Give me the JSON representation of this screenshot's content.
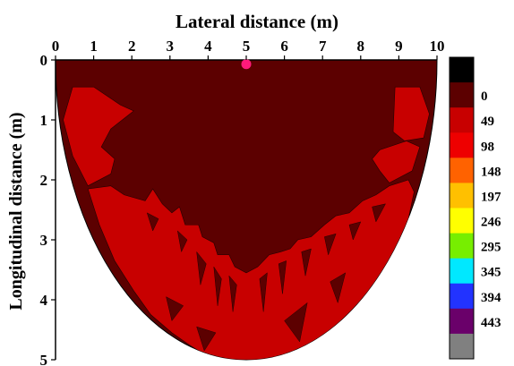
{
  "chart_data": {
    "type": "heatmap",
    "title": "",
    "xlabel": "Lateral distance (m)",
    "ylabel": "Longitudinal distance (m)",
    "xlim": [
      0,
      10
    ],
    "ylim": [
      5,
      0
    ],
    "x_ticks": [
      "0",
      "1",
      "2",
      "3",
      "4",
      "5",
      "6",
      "7",
      "8",
      "9",
      "10"
    ],
    "y_ticks": [
      "0",
      "1",
      "2",
      "3",
      "4",
      "5"
    ],
    "x_axis_position": "top",
    "legend_position": "right",
    "legend": [
      {
        "label": "",
        "color": "#000000"
      },
      {
        "label": "0",
        "color": "#5c0000"
      },
      {
        "label": "49",
        "color": "#c80000"
      },
      {
        "label": "98",
        "color": "#ee0000"
      },
      {
        "label": "148",
        "color": "#ff6200"
      },
      {
        "label": "197",
        "color": "#ffc000"
      },
      {
        "label": "246",
        "color": "#ffff00"
      },
      {
        "label": "295",
        "color": "#77ee00"
      },
      {
        "label": "345",
        "color": "#00e8ff"
      },
      {
        "label": "394",
        "color": "#2233ff"
      },
      {
        "label": "443",
        "color": "#6a006a"
      },
      {
        "label": "",
        "color": "#808080"
      }
    ],
    "marker": {
      "x": 5,
      "y": 0.1,
      "color": "#ff1a7a"
    },
    "region_colors": {
      "background": "#5c0000",
      "high": "#c80000"
    },
    "regions": [
      {
        "name": "left-upper",
        "points": [
          [
            0.45,
            0.45
          ],
          [
            1.0,
            0.45
          ],
          [
            1.7,
            0.75
          ],
          [
            2.05,
            0.85
          ],
          [
            1.45,
            1.15
          ],
          [
            1.2,
            1.45
          ],
          [
            1.55,
            1.65
          ],
          [
            1.45,
            1.9
          ],
          [
            0.85,
            2.1
          ],
          [
            0.45,
            1.6
          ],
          [
            0.2,
            1.0
          ]
        ]
      },
      {
        "name": "right-upper",
        "points": [
          [
            8.9,
            0.45
          ],
          [
            9.55,
            0.45
          ],
          [
            9.8,
            0.9
          ],
          [
            9.65,
            1.3
          ],
          [
            9.15,
            1.35
          ],
          [
            8.85,
            1.2
          ]
        ]
      },
      {
        "name": "right-mid",
        "points": [
          [
            9.2,
            1.35
          ],
          [
            9.55,
            1.45
          ],
          [
            9.35,
            1.85
          ],
          [
            8.75,
            2.05
          ],
          [
            8.5,
            1.85
          ],
          [
            8.3,
            1.65
          ],
          [
            8.5,
            1.5
          ]
        ]
      },
      {
        "name": "lower-band",
        "points": [
          [
            0.85,
            2.15
          ],
          [
            1.45,
            2.1
          ],
          [
            1.8,
            2.25
          ],
          [
            2.35,
            2.35
          ],
          [
            2.55,
            2.15
          ],
          [
            2.8,
            2.4
          ],
          [
            3.05,
            2.55
          ],
          [
            3.25,
            2.45
          ],
          [
            3.4,
            2.75
          ],
          [
            3.75,
            2.75
          ],
          [
            3.85,
            2.95
          ],
          [
            4.15,
            3.05
          ],
          [
            4.25,
            3.25
          ],
          [
            4.55,
            3.25
          ],
          [
            4.7,
            3.45
          ],
          [
            5.0,
            3.55
          ],
          [
            5.3,
            3.45
          ],
          [
            5.6,
            3.25
          ],
          [
            5.9,
            3.2
          ],
          [
            6.15,
            3.15
          ],
          [
            6.35,
            3.0
          ],
          [
            6.7,
            2.95
          ],
          [
            7.05,
            2.75
          ],
          [
            7.35,
            2.6
          ],
          [
            7.7,
            2.55
          ],
          [
            8.05,
            2.35
          ],
          [
            8.4,
            2.25
          ],
          [
            8.75,
            2.1
          ],
          [
            9.25,
            2.0
          ],
          [
            9.4,
            2.2
          ],
          [
            9.2,
            2.8
          ],
          [
            8.9,
            3.3
          ],
          [
            8.5,
            3.75
          ],
          [
            8.05,
            4.05
          ],
          [
            7.7,
            4.35
          ],
          [
            7.3,
            4.45
          ],
          [
            6.9,
            4.65
          ],
          [
            6.5,
            4.85
          ],
          [
            6.0,
            4.95
          ],
          [
            5.5,
            5.0
          ],
          [
            5.0,
            5.0
          ],
          [
            4.5,
            5.0
          ],
          [
            4.0,
            4.95
          ],
          [
            3.5,
            4.75
          ],
          [
            3.05,
            4.55
          ],
          [
            2.5,
            4.25
          ],
          [
            2.05,
            3.85
          ],
          [
            1.55,
            3.35
          ],
          [
            1.15,
            2.75
          ]
        ]
      }
    ],
    "dark_spikes": [
      {
        "points": [
          [
            2.4,
            2.55
          ],
          [
            2.7,
            2.65
          ],
          [
            2.55,
            2.85
          ]
        ]
      },
      {
        "points": [
          [
            3.2,
            2.85
          ],
          [
            3.45,
            3.0
          ],
          [
            3.3,
            3.2
          ]
        ]
      },
      {
        "points": [
          [
            3.7,
            3.2
          ],
          [
            3.95,
            3.4
          ],
          [
            3.8,
            3.75
          ]
        ]
      },
      {
        "points": [
          [
            4.15,
            3.45
          ],
          [
            4.35,
            3.65
          ],
          [
            4.25,
            4.1
          ]
        ]
      },
      {
        "points": [
          [
            4.55,
            3.6
          ],
          [
            4.75,
            3.75
          ],
          [
            4.65,
            4.2
          ]
        ]
      },
      {
        "points": [
          [
            5.35,
            3.65
          ],
          [
            5.55,
            3.55
          ],
          [
            5.45,
            4.2
          ]
        ]
      },
      {
        "points": [
          [
            5.85,
            3.4
          ],
          [
            6.05,
            3.35
          ],
          [
            5.95,
            3.9
          ]
        ]
      },
      {
        "points": [
          [
            6.45,
            3.2
          ],
          [
            6.7,
            3.15
          ],
          [
            6.55,
            3.6
          ]
        ]
      },
      {
        "points": [
          [
            7.05,
            2.95
          ],
          [
            7.35,
            2.9
          ],
          [
            7.15,
            3.25
          ]
        ]
      },
      {
        "points": [
          [
            7.7,
            2.75
          ],
          [
            8.0,
            2.7
          ],
          [
            7.8,
            3.0
          ]
        ]
      },
      {
        "points": [
          [
            8.3,
            2.45
          ],
          [
            8.65,
            2.4
          ],
          [
            8.4,
            2.7
          ]
        ]
      },
      {
        "points": [
          [
            6.0,
            4.35
          ],
          [
            6.6,
            4.05
          ],
          [
            6.4,
            4.7
          ]
        ]
      },
      {
        "points": [
          [
            3.7,
            4.45
          ],
          [
            4.2,
            4.55
          ],
          [
            3.9,
            4.85
          ]
        ]
      },
      {
        "points": [
          [
            2.9,
            3.95
          ],
          [
            3.35,
            4.1
          ],
          [
            3.05,
            4.35
          ]
        ]
      },
      {
        "points": [
          [
            7.2,
            3.7
          ],
          [
            7.6,
            3.55
          ],
          [
            7.4,
            4.05
          ]
        ]
      }
    ]
  }
}
